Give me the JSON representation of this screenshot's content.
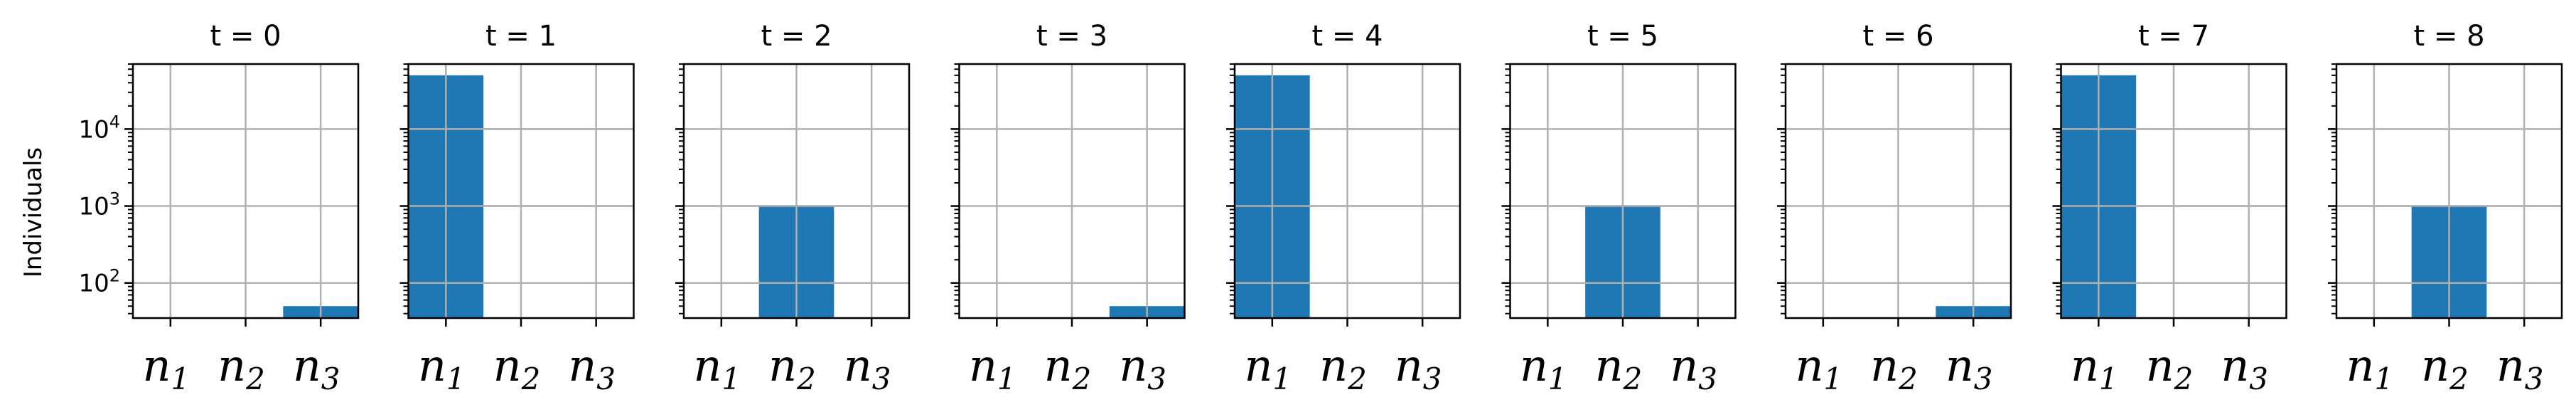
{
  "chart_data": {
    "type": "bar",
    "ylabel": "Individuals",
    "yscale": "log",
    "ylim": [
      35,
      70000
    ],
    "ytick_labels": [
      {
        "value": 100,
        "base": "10",
        "exp": "2"
      },
      {
        "value": 1000,
        "base": "10",
        "exp": "3"
      },
      {
        "value": 10000,
        "base": "10",
        "exp": "4"
      }
    ],
    "categories": [
      {
        "base": "n",
        "sub": "1"
      },
      {
        "base": "n",
        "sub": "2"
      },
      {
        "base": "n",
        "sub": "3"
      }
    ],
    "grid": true,
    "bar_color": "#1f77b4",
    "panels": [
      {
        "title": "t = 0",
        "values": [
          null,
          null,
          50
        ]
      },
      {
        "title": "t = 1",
        "values": [
          50000,
          null,
          null
        ]
      },
      {
        "title": "t = 2",
        "values": [
          null,
          1000,
          null
        ]
      },
      {
        "title": "t = 3",
        "values": [
          null,
          null,
          50
        ]
      },
      {
        "title": "t = 4",
        "values": [
          50000,
          null,
          null
        ]
      },
      {
        "title": "t = 5",
        "values": [
          null,
          1000,
          null
        ]
      },
      {
        "title": "t = 6",
        "values": [
          null,
          null,
          50
        ]
      },
      {
        "title": "t = 7",
        "values": [
          50000,
          null,
          null
        ]
      },
      {
        "title": "t = 8",
        "values": [
          null,
          1000,
          null
        ]
      }
    ]
  }
}
